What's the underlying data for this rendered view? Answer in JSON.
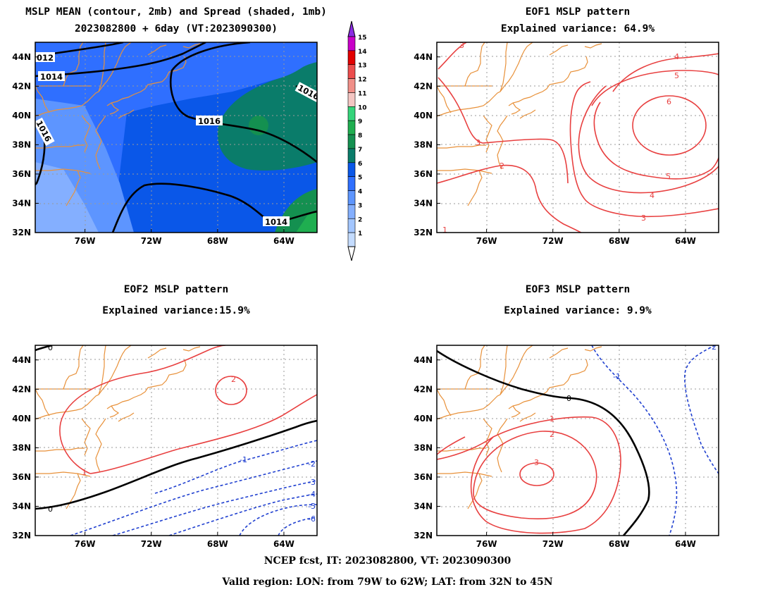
{
  "titles": {
    "p1_line1": "MSLP MEAN (contour, 2mb) and Spread (shaded, 1mb)",
    "p1_line2": "2023082800 + 6day (VT:2023090300)",
    "p2_line1": "EOF1 MSLP pattern",
    "p2_line2": "Explained variance: 64.9%",
    "p3_line1": "EOF2 MSLP pattern",
    "p3_line2": "Explained variance:15.9%",
    "p4_line1": "EOF3 MSLP pattern",
    "p4_line2": "Explained variance: 9.9%"
  },
  "footer": {
    "line1": "NCEP fcst, IT: 2023082800, VT: 2023090300",
    "line2": "Valid region: LON: from 79W to 62W; LAT: from 32N to 45N"
  },
  "chart_data": [
    {
      "type": "contour map",
      "panel": "mean_spread",
      "lon_range": [
        -79,
        -62
      ],
      "lat_range": [
        32,
        45
      ],
      "x_ticks": [
        "76W",
        "72W",
        "68W",
        "64W"
      ],
      "y_ticks": [
        "32N",
        "34N",
        "36N",
        "38N",
        "40N",
        "42N",
        "44N"
      ],
      "contour_labels": [
        "012",
        "1014",
        "1016",
        "1016",
        "1016",
        "1014"
      ],
      "colorbar": {
        "levels": [
          1,
          2,
          3,
          4,
          5,
          6,
          7,
          8,
          9,
          10,
          11,
          12,
          13,
          14,
          15
        ],
        "colors": [
          "#c4dcff",
          "#a3c6ff",
          "#84afff",
          "#5d95ff",
          "#2f6fff",
          "#0a57e8",
          "#0a7c6a",
          "#149050",
          "#1fae50",
          "#35d47a",
          "#f4c6c3",
          "#f08f88",
          "#ec4d4d",
          "#e20000",
          "#c800c8"
        ],
        "top_color": "#8a2be2"
      }
    },
    {
      "type": "contour map",
      "panel": "EOF1",
      "lon_range": [
        -79,
        -62
      ],
      "lat_range": [
        32,
        45
      ],
      "x_ticks": [
        "76W",
        "72W",
        "68W",
        "64W"
      ],
      "y_ticks": [
        "32N",
        "34N",
        "36N",
        "38N",
        "40N",
        "42N",
        "44N"
      ],
      "contour_labels": [
        "3",
        "4",
        "5",
        "6",
        "3",
        "2",
        "5",
        "4",
        "3",
        "1"
      ]
    },
    {
      "type": "contour map",
      "panel": "EOF2",
      "lon_range": [
        -79,
        -62
      ],
      "lat_range": [
        32,
        45
      ],
      "x_ticks": [
        "76W",
        "72W",
        "68W",
        "64W"
      ],
      "y_ticks": [
        "32N",
        "34N",
        "36N",
        "38N",
        "40N",
        "42N",
        "44N"
      ],
      "contour_labels": [
        "0",
        "2",
        "1",
        "0",
        "-1",
        "-2",
        "-3",
        "-4",
        "-5",
        "-6"
      ]
    },
    {
      "type": "contour map",
      "panel": "EOF3",
      "lon_range": [
        -79,
        -62
      ],
      "lat_range": [
        32,
        45
      ],
      "x_ticks": [
        "76W",
        "72W",
        "68W",
        "64W"
      ],
      "y_ticks": [
        "32N",
        "34N",
        "36N",
        "38N",
        "40N",
        "42N",
        "44N"
      ],
      "contour_labels": [
        "0",
        "-1",
        "-2",
        "1",
        "2",
        "3"
      ]
    }
  ],
  "colors": {
    "coast": "#e8913a",
    "positive": "#e84040",
    "negative": "#2040d0",
    "zero": "#000000",
    "grid": "#9a9a9a"
  }
}
